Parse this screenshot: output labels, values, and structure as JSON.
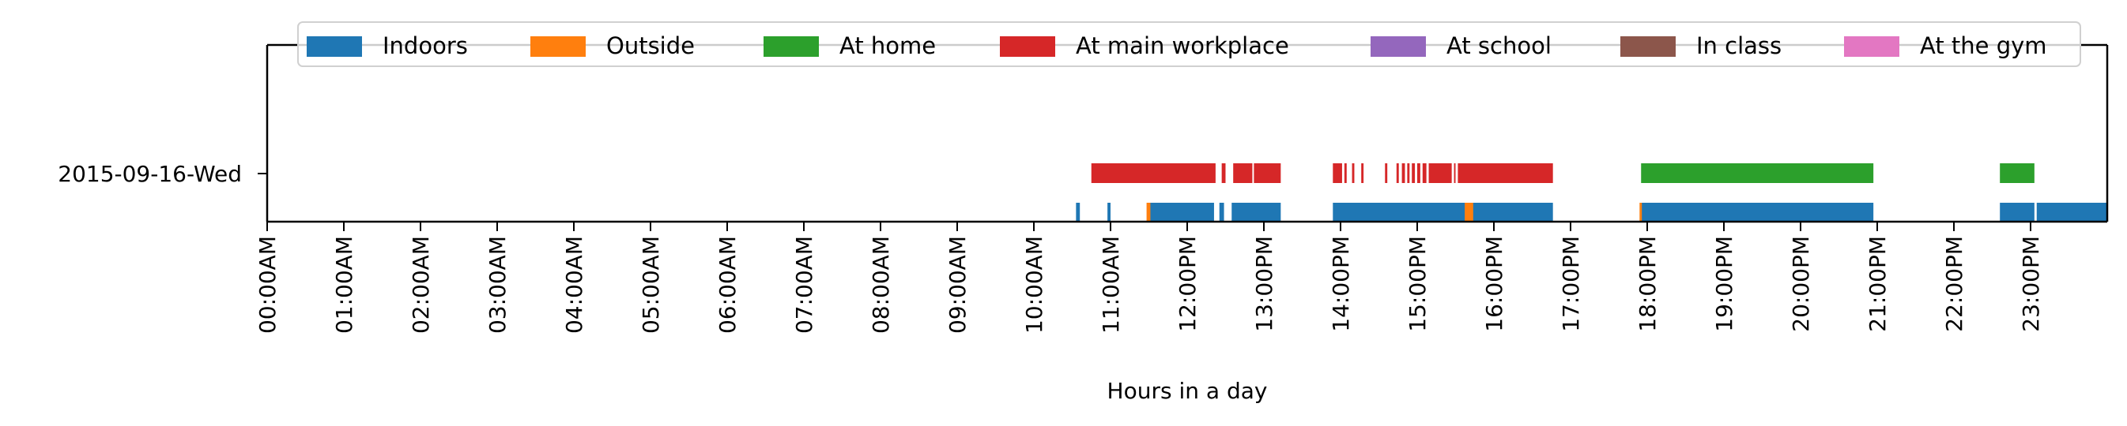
{
  "chart_data": {
    "type": "timeline",
    "title": "",
    "xlabel": "Hours in a day",
    "ylabel": "",
    "xlim": [
      0,
      24
    ],
    "x_unit": "hours",
    "row_label": "2015-09-16-Wed",
    "x_ticks": [
      {
        "value": 0,
        "label": "00:00AM"
      },
      {
        "value": 1,
        "label": "01:00AM"
      },
      {
        "value": 2,
        "label": "02:00AM"
      },
      {
        "value": 3,
        "label": "03:00AM"
      },
      {
        "value": 4,
        "label": "04:00AM"
      },
      {
        "value": 5,
        "label": "05:00AM"
      },
      {
        "value": 6,
        "label": "06:00AM"
      },
      {
        "value": 7,
        "label": "07:00AM"
      },
      {
        "value": 8,
        "label": "08:00AM"
      },
      {
        "value": 9,
        "label": "09:00AM"
      },
      {
        "value": 10,
        "label": "10:00AM"
      },
      {
        "value": 11,
        "label": "11:00AM"
      },
      {
        "value": 12,
        "label": "12:00PM"
      },
      {
        "value": 13,
        "label": "13:00PM"
      },
      {
        "value": 14,
        "label": "14:00PM"
      },
      {
        "value": 15,
        "label": "15:00PM"
      },
      {
        "value": 16,
        "label": "16:00PM"
      },
      {
        "value": 17,
        "label": "17:00PM"
      },
      {
        "value": 18,
        "label": "18:00PM"
      },
      {
        "value": 19,
        "label": "19:00PM"
      },
      {
        "value": 20,
        "label": "20:00PM"
      },
      {
        "value": 21,
        "label": "21:00PM"
      },
      {
        "value": 22,
        "label": "22:00PM"
      },
      {
        "value": 23,
        "label": "23:00PM"
      }
    ],
    "legend_position": "top",
    "series": [
      {
        "name": "Indoors",
        "color": "#1f77b4",
        "lane": "lower",
        "intervals": [
          [
            10.55,
            10.6
          ],
          [
            10.96,
            11.0
          ],
          [
            11.5,
            12.35
          ],
          [
            12.42,
            12.48
          ],
          [
            12.58,
            13.22
          ],
          [
            13.9,
            15.68
          ],
          [
            15.72,
            16.77
          ],
          [
            17.92,
            20.95
          ],
          [
            22.6,
            23.05
          ],
          [
            23.08,
            24.0
          ]
        ]
      },
      {
        "name": "Outside",
        "color": "#ff7f0e",
        "lane": "lower",
        "intervals": [
          [
            11.47,
            11.52
          ],
          [
            15.62,
            15.73
          ],
          [
            17.9,
            17.93
          ]
        ]
      },
      {
        "name": "At home",
        "color": "#2ca02c",
        "lane": "upper",
        "intervals": [
          [
            17.92,
            20.95
          ],
          [
            22.6,
            23.05
          ]
        ]
      },
      {
        "name": "At main workplace",
        "color": "#d62728",
        "lane": "upper",
        "intervals": [
          [
            10.75,
            12.37
          ],
          [
            12.45,
            12.5
          ],
          [
            12.6,
            12.85
          ],
          [
            12.87,
            13.22
          ],
          [
            13.9,
            14.02
          ],
          [
            14.05,
            14.08
          ],
          [
            14.15,
            14.18
          ],
          [
            14.27,
            14.3
          ],
          [
            14.58,
            14.61
          ],
          [
            14.73,
            14.76
          ],
          [
            14.8,
            14.84
          ],
          [
            14.87,
            14.9
          ],
          [
            14.93,
            14.97
          ],
          [
            15.0,
            15.04
          ],
          [
            15.07,
            15.12
          ],
          [
            15.15,
            15.45
          ],
          [
            15.48,
            15.5
          ],
          [
            15.53,
            16.77
          ]
        ]
      },
      {
        "name": "At school",
        "color": "#9467bd",
        "lane": "upper",
        "intervals": []
      },
      {
        "name": "In class",
        "color": "#8c564b",
        "lane": "upper",
        "intervals": []
      },
      {
        "name": "At the gym",
        "color": "#e377c2",
        "lane": "upper",
        "intervals": []
      }
    ]
  }
}
